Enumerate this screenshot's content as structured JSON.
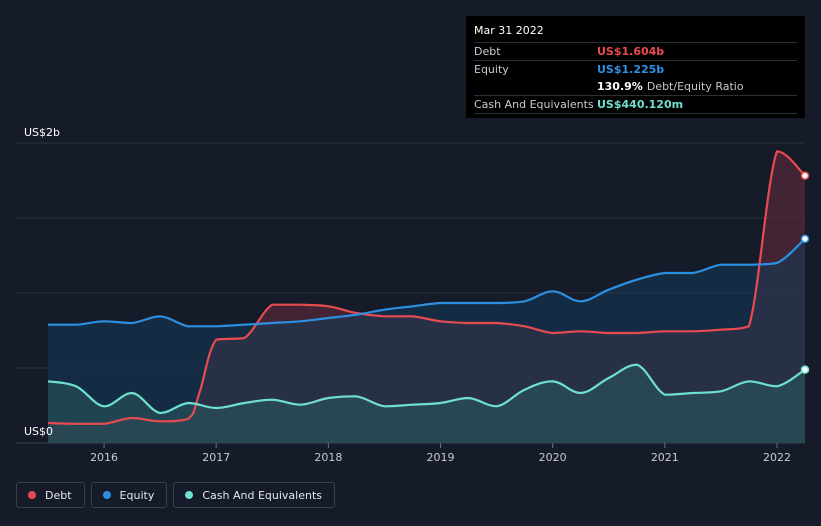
{
  "tooltip": {
    "date": "Mar 31 2022",
    "debt_label": "Debt",
    "debt_value": "US$1.604b",
    "equity_label": "Equity",
    "equity_value": "US$1.225b",
    "ratio_value": "130.9%",
    "ratio_label": "Debt/Equity Ratio",
    "cash_label": "Cash And Equivalents",
    "cash_value": "US$440.120m"
  },
  "legend": [
    {
      "name": "Debt",
      "color": "#e84b4f"
    },
    {
      "name": "Equity",
      "color": "#2d8fe0"
    },
    {
      "name": "Cash And Equivalents",
      "color": "#6fe0cf"
    }
  ],
  "chart_data": {
    "type": "area",
    "ylabel_top": "US$2b",
    "ylabel_bottom": "US$0",
    "ylim": [
      0,
      1.8
    ],
    "xlim": [
      2015.5,
      2022.25
    ],
    "x_ticks": [
      2016,
      2017,
      2018,
      2019,
      2020,
      2021,
      2022
    ],
    "x_tick_labels": [
      "2016",
      "2017",
      "2018",
      "2019",
      "2020",
      "2021",
      "2022"
    ],
    "grid": true,
    "series": [
      {
        "name": "Debt",
        "color": "#e84b4f",
        "x": [
          2015.5,
          2015.75,
          2016.0,
          2016.25,
          2016.5,
          2016.75,
          2016.85,
          2017.0,
          2017.25,
          2017.5,
          2017.75,
          2018.0,
          2018.25,
          2018.5,
          2018.75,
          2019.0,
          2019.25,
          2019.5,
          2019.75,
          2020.0,
          2020.25,
          2020.5,
          2020.75,
          2021.0,
          2021.25,
          2021.5,
          2021.75,
          2022.0,
          2022.25
        ],
        "values": [
          0.12,
          0.115,
          0.115,
          0.15,
          0.13,
          0.145,
          0.3,
          0.62,
          0.63,
          0.83,
          0.83,
          0.82,
          0.78,
          0.76,
          0.76,
          0.73,
          0.72,
          0.72,
          0.7,
          0.66,
          0.67,
          0.66,
          0.66,
          0.67,
          0.67,
          0.68,
          0.7,
          1.75,
          1.604
        ]
      },
      {
        "name": "Equity",
        "color": "#2d8fe0",
        "x": [
          2015.5,
          2015.75,
          2016.0,
          2016.25,
          2016.5,
          2016.75,
          2017.0,
          2017.25,
          2017.5,
          2017.75,
          2018.0,
          2018.25,
          2018.5,
          2018.75,
          2019.0,
          2019.25,
          2019.5,
          2019.75,
          2020.0,
          2020.25,
          2020.5,
          2020.75,
          2021.0,
          2021.25,
          2021.5,
          2021.75,
          2022.0,
          2022.25
        ],
        "values": [
          0.71,
          0.71,
          0.73,
          0.72,
          0.76,
          0.7,
          0.7,
          0.71,
          0.72,
          0.73,
          0.75,
          0.77,
          0.8,
          0.82,
          0.84,
          0.84,
          0.84,
          0.85,
          0.91,
          0.85,
          0.92,
          0.98,
          1.02,
          1.02,
          1.07,
          1.07,
          1.08,
          1.225
        ]
      },
      {
        "name": "Cash And Equivalents",
        "color": "#6fe0cf",
        "x": [
          2015.5,
          2015.75,
          2016.0,
          2016.25,
          2016.5,
          2016.75,
          2017.0,
          2017.25,
          2017.5,
          2017.75,
          2018.0,
          2018.25,
          2018.5,
          2018.75,
          2019.0,
          2019.25,
          2019.5,
          2019.75,
          2020.0,
          2020.25,
          2020.5,
          2020.75,
          2021.0,
          2021.25,
          2021.5,
          2021.75,
          2022.0,
          2022.25
        ],
        "values": [
          0.37,
          0.34,
          0.22,
          0.3,
          0.18,
          0.24,
          0.21,
          0.24,
          0.26,
          0.23,
          0.27,
          0.28,
          0.22,
          0.23,
          0.24,
          0.27,
          0.22,
          0.32,
          0.37,
          0.3,
          0.39,
          0.47,
          0.29,
          0.3,
          0.31,
          0.37,
          0.34,
          0.44
        ]
      }
    ]
  }
}
